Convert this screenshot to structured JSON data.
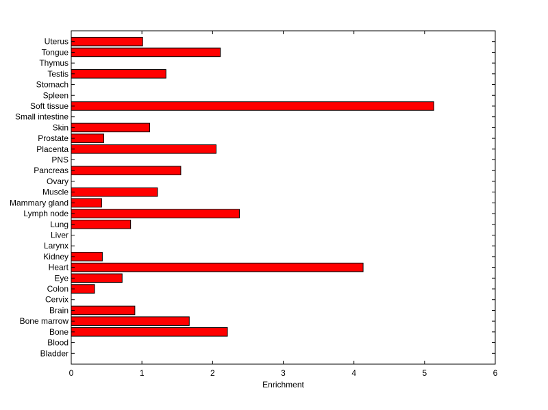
{
  "chart_data": {
    "type": "bar",
    "orientation": "horizontal",
    "title": "",
    "xlabel": "Enrichment",
    "ylabel": "",
    "xlim": [
      0,
      6
    ],
    "xticks": [
      0,
      1,
      2,
      3,
      4,
      5,
      6
    ],
    "grid": false,
    "legend": "none",
    "bar_color": "#ff0000",
    "bar_edge_color": "#000000",
    "categories": [
      "Bladder",
      "Blood",
      "Bone",
      "Bone marrow",
      "Brain",
      "Cervix",
      "Colon",
      "Eye",
      "Heart",
      "Kidney",
      "Larynx",
      "Liver",
      "Lung",
      "Lymph node",
      "Mammary gland",
      "Muscle",
      "Ovary",
      "Pancreas",
      "PNS",
      "Placenta",
      "Prostate",
      "Skin",
      "Small intestine",
      "Soft tissue",
      "Spleen",
      "Stomach",
      "Testis",
      "Thymus",
      "Tongue",
      "Uterus"
    ],
    "values": [
      0,
      0,
      2.21,
      1.67,
      0.9,
      0,
      0.33,
      0.72,
      4.13,
      0.44,
      0,
      0,
      0.84,
      2.38,
      0.43,
      1.22,
      0,
      1.55,
      0,
      2.05,
      0.46,
      1.11,
      0,
      5.13,
      0,
      0,
      1.34,
      0,
      2.11,
      1.01
    ]
  }
}
